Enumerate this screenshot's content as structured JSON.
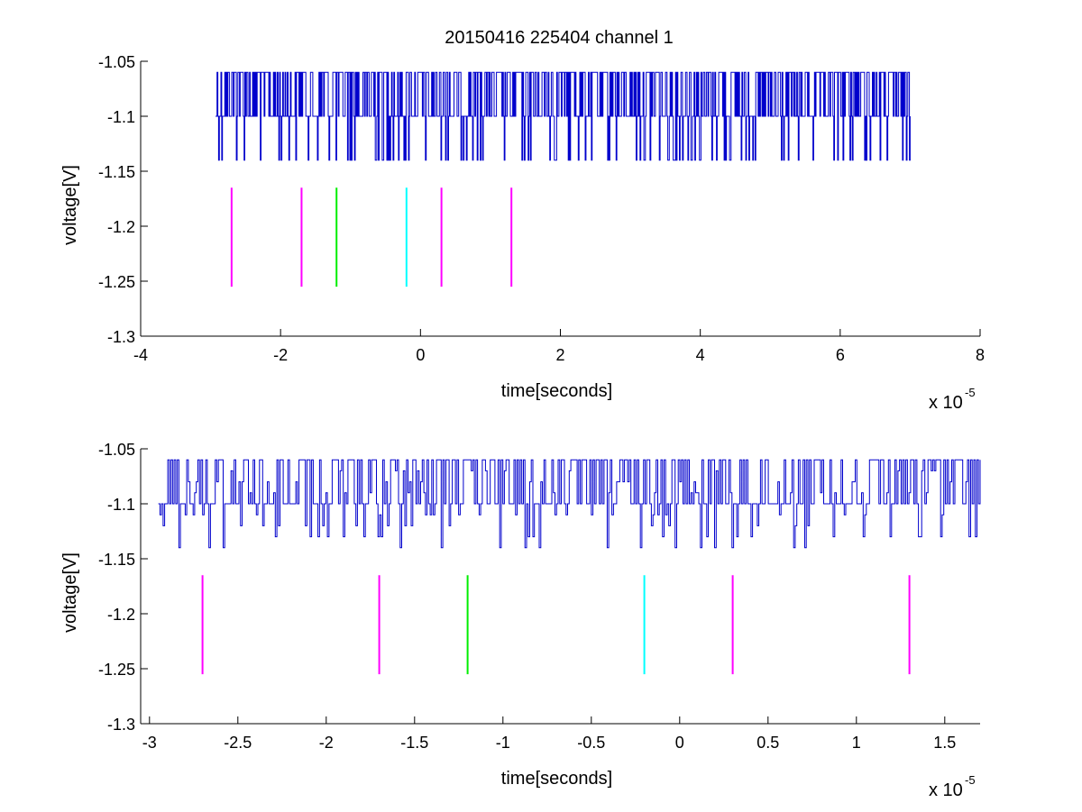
{
  "title": "20150416 225404 channel 1",
  "colors": {
    "background": "#ffffff",
    "axes": "#000000",
    "signal": "#0000cc",
    "marker_magenta": "#ff00ff",
    "marker_green": "#00ee00",
    "marker_cyan": "#00ffff"
  },
  "chart_data": [
    {
      "type": "line",
      "xlabel": "time[seconds]",
      "ylabel": "voltage[V]",
      "x_exponent_base": "x 10",
      "x_exponent_power": "-5",
      "xlim": [
        -4,
        8
      ],
      "ylim": [
        -1.3,
        -1.05
      ],
      "xticks": [
        -4,
        -2,
        0,
        2,
        4,
        6,
        8
      ],
      "xtick_labels": [
        "-4",
        "-2",
        "0",
        "2",
        "4",
        "6",
        "8"
      ],
      "yticks": [
        -1.05,
        -1.1,
        -1.15,
        -1.2,
        -1.25,
        -1.3
      ],
      "ytick_labels": [
        "-1.05",
        "-1.1",
        "-1.15",
        "-1.2",
        "-1.25",
        "-1.3"
      ],
      "grid": false,
      "signal": {
        "x_start": -2.93,
        "x_end": 7.0,
        "baseline": -1.1,
        "levels": [
          -1.14,
          -1.1,
          -1.06
        ],
        "description_note": "noisy digitized voltage trace sampled between discrete levels"
      },
      "markers": [
        {
          "x": -2.7,
          "y_top": -1.165,
          "y_bottom": -1.255,
          "color": "#ff00ff"
        },
        {
          "x": -1.7,
          "y_top": -1.165,
          "y_bottom": -1.255,
          "color": "#ff00ff"
        },
        {
          "x": -1.2,
          "y_top": -1.165,
          "y_bottom": -1.255,
          "color": "#00ee00"
        },
        {
          "x": -0.2,
          "y_top": -1.165,
          "y_bottom": -1.255,
          "color": "#00ffff"
        },
        {
          "x": 0.3,
          "y_top": -1.165,
          "y_bottom": -1.255,
          "color": "#ff00ff"
        },
        {
          "x": 1.3,
          "y_top": -1.165,
          "y_bottom": -1.255,
          "color": "#ff00ff"
        }
      ]
    },
    {
      "type": "line",
      "xlabel": "time[seconds]",
      "ylabel": "voltage[V]",
      "x_exponent_base": "x 10",
      "x_exponent_power": "-5",
      "xlim": [
        -3.05,
        1.7
      ],
      "ylim": [
        -1.3,
        -1.05
      ],
      "xticks": [
        -3,
        -2.5,
        -2,
        -1.5,
        -1,
        -0.5,
        0,
        0.5,
        1,
        1.5
      ],
      "xtick_labels": [
        "-3",
        "-2.5",
        "-2",
        "-1.5",
        "-1",
        "-0.5",
        "0",
        "0.5",
        "1",
        "1.5"
      ],
      "yticks": [
        -1.05,
        -1.1,
        -1.15,
        -1.2,
        -1.25,
        -1.3
      ],
      "ytick_labels": [
        "-1.05",
        "-1.1",
        "-1.15",
        "-1.2",
        "-1.25",
        "-1.3"
      ],
      "grid": false,
      "signal": {
        "x_start": -2.95,
        "x_end": 1.7,
        "baseline": -1.1,
        "levels": [
          -1.14,
          -1.13,
          -1.12,
          -1.11,
          -1.1,
          -1.09,
          -1.08,
          -1.07,
          -1.06
        ],
        "description_note": "zoomed portion of the same voltage trace"
      },
      "markers": [
        {
          "x": -2.7,
          "y_top": -1.165,
          "y_bottom": -1.255,
          "color": "#ff00ff"
        },
        {
          "x": -1.7,
          "y_top": -1.165,
          "y_bottom": -1.255,
          "color": "#ff00ff"
        },
        {
          "x": -1.2,
          "y_top": -1.165,
          "y_bottom": -1.255,
          "color": "#00ee00"
        },
        {
          "x": -0.2,
          "y_top": -1.165,
          "y_bottom": -1.255,
          "color": "#00ffff"
        },
        {
          "x": 0.3,
          "y_top": -1.165,
          "y_bottom": -1.255,
          "color": "#ff00ff"
        },
        {
          "x": 1.3,
          "y_top": -1.165,
          "y_bottom": -1.255,
          "color": "#ff00ff"
        }
      ]
    }
  ]
}
